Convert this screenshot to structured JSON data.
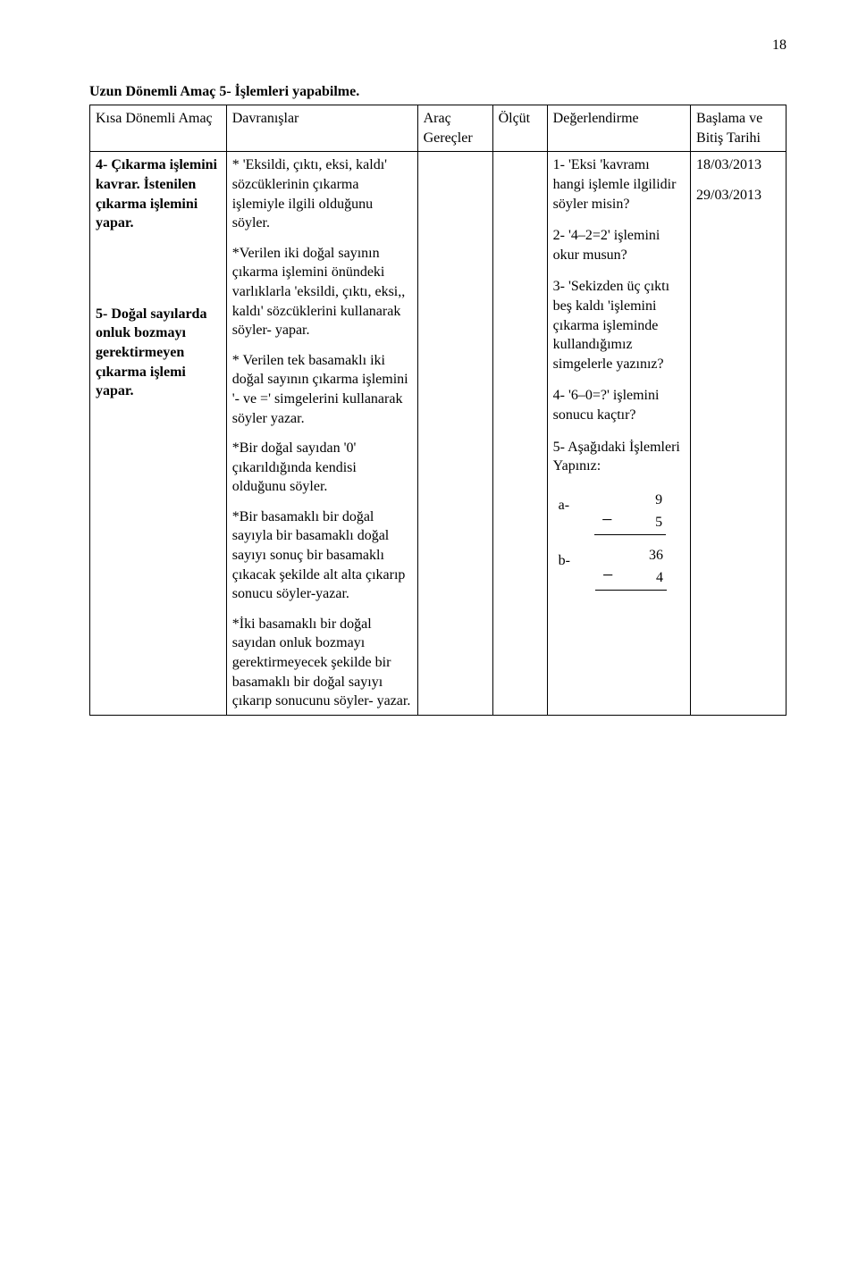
{
  "page_number": "18",
  "title": "Uzun Dönemli Amaç 5- İşlemleri yapabilme.",
  "headers": {
    "amac": "Kısa Dönemli Amaç",
    "davranislar": "Davranışlar",
    "arac": "Araç Gereçler",
    "olcut": "Ölçüt",
    "degerlendirme": "Değerlendirme",
    "tarih": "Başlama ve Bitiş Tarihi"
  },
  "amac": {
    "item4": "4- Çıkarma işlemini kavrar. İstenilen çıkarma işlemini yapar.",
    "item5": "5- Doğal sayılarda onluk bozmayı gerektirmeyen çıkarma işlemi yapar."
  },
  "davranis": {
    "p1": "* 'Eksildi, çıktı, eksi, kaldı' sözcüklerinin çıkarma işlemiyle ilgili olduğunu söyler.",
    "p2": "*Verilen iki doğal sayının çıkarma işlemini önündeki varlıklarla 'eksildi, çıktı, eksi,, kaldı' sözcüklerini kullanarak söyler- yapar.",
    "p3": "* Verilen tek basamaklı iki doğal sayının çıkarma işlemini '- ve =' simgelerini kullanarak söyler yazar.",
    "p4": "*Bir doğal sayıdan '0' çıkarıldığında kendisi olduğunu söyler.",
    "p5": "*Bir basamaklı bir doğal sayıyla bir basamaklı doğal sayıyı sonuç bir basamaklı çıkacak şekilde alt alta çıkarıp sonucu söyler-yazar.",
    "p6": "*İki basamaklı bir doğal sayıdan onluk bozmayı gerektirmeyecek şekilde bir basamaklı bir doğal sayıyı çıkarıp sonucunu söyler- yazar."
  },
  "deger": {
    "p1": "1- 'Eksi 'kavramı hangi işlemle ilgilidir söyler misin?",
    "p2": "2- '4–2=2' işlemini okur musun?",
    "p3": "3- 'Sekizden üç çıktı beş kaldı 'işlemini çıkarma işleminde kullandığımız simgelerle yazınız?",
    "p4": "4- '6–0=?' işlemini sonucu kaçtır?",
    "p5": "5- Aşağıdaki İşlemleri Yapınız:",
    "label_a": "a-",
    "a_top": "9",
    "a_bot": "5",
    "label_b": "b-",
    "b_top": "36",
    "b_bot": "4",
    "minus": "−"
  },
  "dates": {
    "d1": "18/03/2013",
    "d2": "29/03/2013"
  }
}
